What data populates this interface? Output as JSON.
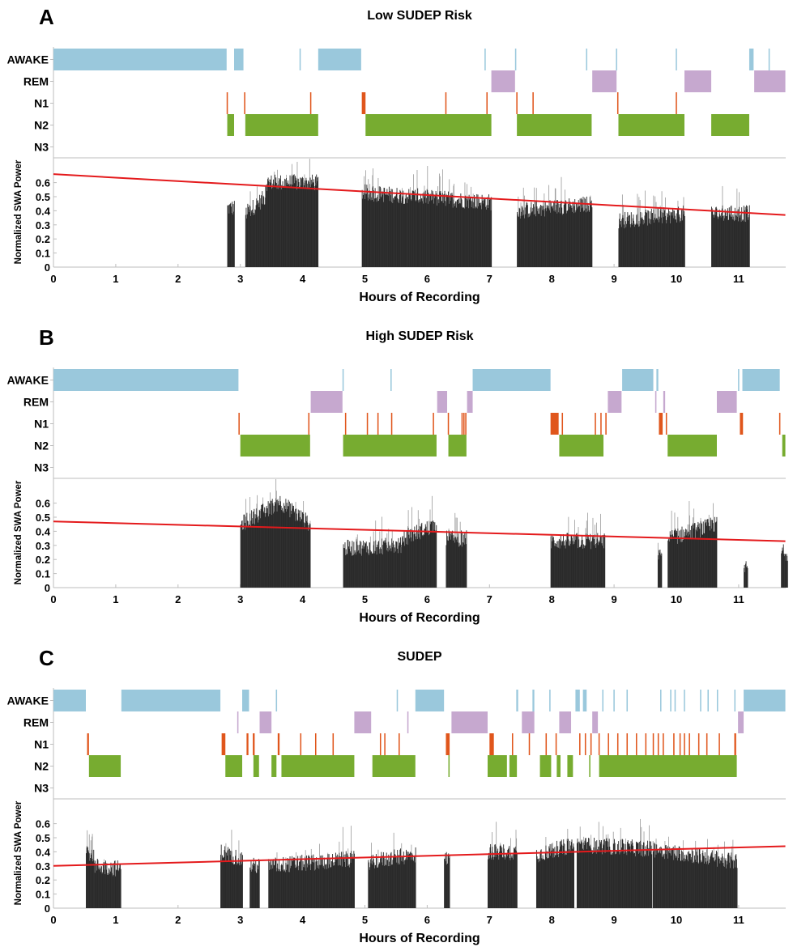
{
  "chart_data": {
    "type": "bar",
    "stage_labels": [
      "AWAKE",
      "REM",
      "N1",
      "N2",
      "N3"
    ],
    "colors": {
      "AWAKE": "#9ac8dc",
      "REM": "#c6a8cf",
      "N1": "#e0561c",
      "N2": "#77ac30",
      "bars": "#2a2a2a",
      "bar_peaks": "#9a9a9a",
      "trend": "#e41a1c",
      "axis": "#bdbdbd"
    },
    "xlabel": "Hours of Recording",
    "ylabel": "Normalized SWA Power",
    "xlim": [
      0,
      11.75
    ],
    "ylim": [
      0,
      0.776
    ],
    "xticks": [
      0,
      1,
      2,
      3,
      4,
      5,
      6,
      7,
      8,
      9,
      10,
      11
    ],
    "yticks": [
      0,
      0.1,
      0.2,
      0.3,
      0.4,
      0.5,
      0.6
    ],
    "panels": [
      {
        "label": "A",
        "title": "Low SUDEP Risk",
        "trend": [
          [
            0,
            0.66
          ],
          [
            11.75,
            0.37
          ]
        ],
        "hypnogram": {
          "AWAKE": [
            [
              0,
              2.78
            ],
            [
              2.9,
              3.05
            ],
            [
              3.95,
              3.97
            ],
            [
              4.25,
              4.94
            ],
            [
              6.92,
              6.94
            ],
            [
              7.41,
              7.43
            ],
            [
              8.55,
              8.57
            ],
            [
              9.03,
              9.05
            ],
            [
              9.99,
              10.01
            ],
            [
              11.17,
              11.24
            ],
            [
              11.48,
              11.5
            ]
          ],
          "REM": [
            [
              7.03,
              7.41
            ],
            [
              8.65,
              9.04
            ],
            [
              10.13,
              10.56
            ],
            [
              11.25,
              11.76
            ]
          ],
          "N1": [
            [
              2.78,
              2.8
            ],
            [
              3.06,
              3.08
            ],
            [
              4.12,
              4.14
            ],
            [
              4.95,
              5.01
            ],
            [
              6.29,
              6.31
            ],
            [
              6.95,
              6.97
            ],
            [
              7.43,
              7.45
            ],
            [
              7.69,
              7.71
            ],
            [
              9.05,
              9.07
            ],
            [
              9.99,
              10.01
            ]
          ],
          "N2": [
            [
              2.79,
              2.9
            ],
            [
              3.08,
              4.25
            ],
            [
              5.01,
              7.03
            ],
            [
              7.44,
              8.64
            ],
            [
              9.07,
              10.13
            ],
            [
              10.56,
              11.17
            ]
          ],
          "N3": []
        },
        "swa_segments": [
          {
            "start": 2.79,
            "end": 2.9,
            "level_start": 0.42,
            "level_end": 0.42
          },
          {
            "start": 3.08,
            "end": 3.4,
            "level_start": 0.38,
            "level_end": 0.5
          },
          {
            "start": 3.4,
            "end": 4.25,
            "level_start": 0.6,
            "level_end": 0.6
          },
          {
            "start": 4.95,
            "end": 7.03,
            "level_start": 0.53,
            "level_end": 0.46
          },
          {
            "start": 7.44,
            "end": 8.64,
            "level_start": 0.4,
            "level_end": 0.45
          },
          {
            "start": 9.07,
            "end": 10.13,
            "level_start": 0.33,
            "level_end": 0.38
          },
          {
            "start": 10.56,
            "end": 11.17,
            "level_start": 0.38,
            "level_end": 0.38
          }
        ]
      },
      {
        "label": "B",
        "title": "High SUDEP Risk",
        "trend": [
          [
            0,
            0.47
          ],
          [
            11.75,
            0.33
          ]
        ],
        "hypnogram": {
          "AWAKE": [
            [
              0,
              2.97
            ],
            [
              4.64,
              4.66
            ],
            [
              5.41,
              5.43
            ],
            [
              6.73,
              7.98
            ],
            [
              9.13,
              9.63
            ],
            [
              9.68,
              9.71
            ],
            [
              10.99,
              11.01
            ],
            [
              11.06,
              11.66
            ]
          ],
          "REM": [
            [
              4.13,
              4.64
            ],
            [
              6.16,
              6.32
            ],
            [
              6.64,
              6.73
            ],
            [
              8.9,
              9.12
            ],
            [
              9.66,
              9.68
            ],
            [
              9.79,
              9.82
            ],
            [
              10.65,
              10.97
            ]
          ],
          "N1": [
            [
              2.97,
              2.99
            ],
            [
              4.09,
              4.11
            ],
            [
              4.68,
              4.7
            ],
            [
              5.03,
              5.05
            ],
            [
              5.2,
              5.22
            ],
            [
              5.42,
              5.44
            ],
            [
              6.09,
              6.11
            ],
            [
              6.33,
              6.35
            ],
            [
              6.55,
              6.57
            ],
            [
              6.58,
              6.6
            ],
            [
              6.61,
              6.63
            ],
            [
              7.98,
              8.11
            ],
            [
              8.16,
              8.18
            ],
            [
              8.69,
              8.71
            ],
            [
              8.78,
              8.8
            ],
            [
              8.86,
              8.88
            ],
            [
              9.72,
              9.78
            ],
            [
              9.83,
              9.85
            ],
            [
              11.02,
              11.07
            ],
            [
              11.65,
              11.67
            ]
          ],
          "N2": [
            [
              3.0,
              4.12
            ],
            [
              4.65,
              6.15
            ],
            [
              6.34,
              6.63
            ],
            [
              8.12,
              8.83
            ],
            [
              9.86,
              10.65
            ],
            [
              11.7,
              11.78
            ]
          ],
          "N3": []
        },
        "swa_segments": [
          {
            "start": 3.0,
            "end": 3.6,
            "level_start": 0.45,
            "level_end": 0.6
          },
          {
            "start": 3.6,
            "end": 4.12,
            "level_start": 0.62,
            "level_end": 0.45
          },
          {
            "start": 4.65,
            "end": 5.6,
            "level_start": 0.28,
            "level_end": 0.3
          },
          {
            "start": 5.6,
            "end": 6.15,
            "level_start": 0.35,
            "level_end": 0.45
          },
          {
            "start": 6.3,
            "end": 6.63,
            "level_start": 0.35,
            "level_end": 0.35
          },
          {
            "start": 7.98,
            "end": 8.85,
            "level_start": 0.33,
            "level_end": 0.33
          },
          {
            "start": 9.7,
            "end": 9.76,
            "level_start": 0.22,
            "level_end": 0.22
          },
          {
            "start": 9.86,
            "end": 10.65,
            "level_start": 0.35,
            "level_end": 0.45
          },
          {
            "start": 11.08,
            "end": 11.14,
            "level_start": 0.14,
            "level_end": 0.14
          },
          {
            "start": 11.68,
            "end": 11.78,
            "level_start": 0.25,
            "level_end": 0.25
          }
        ]
      },
      {
        "label": "C",
        "title": "SUDEP",
        "trend": [
          [
            0,
            0.3
          ],
          [
            11.75,
            0.44
          ]
        ],
        "hypnogram": {
          "AWAKE": [
            [
              0,
              0.52
            ],
            [
              1.09,
              2.68
            ],
            [
              3.03,
              3.14
            ],
            [
              3.57,
              3.59
            ],
            [
              5.51,
              5.53
            ],
            [
              5.81,
              6.27
            ],
            [
              7.43,
              7.46
            ],
            [
              7.69,
              7.72
            ],
            [
              7.96,
              7.98
            ],
            [
              8.38,
              8.45
            ],
            [
              8.5,
              8.56
            ],
            [
              8.81,
              8.83
            ],
            [
              8.99,
              9.01
            ],
            [
              9.2,
              9.22
            ],
            [
              9.74,
              9.76
            ],
            [
              9.9,
              9.92
            ],
            [
              9.97,
              9.99
            ],
            [
              10.12,
              10.14
            ],
            [
              10.38,
              10.4
            ],
            [
              10.5,
              10.52
            ],
            [
              10.65,
              10.67
            ],
            [
              10.93,
              10.95
            ],
            [
              11.08,
              11.76
            ]
          ],
          "REM": [
            [
              2.95,
              2.97
            ],
            [
              3.31,
              3.5
            ],
            [
              4.83,
              5.1
            ],
            [
              5.68,
              5.7
            ],
            [
              6.39,
              6.97
            ],
            [
              7.52,
              7.72
            ],
            [
              8.12,
              8.31
            ],
            [
              8.65,
              8.74
            ],
            [
              10.99,
              11.08
            ]
          ],
          "N1": [
            [
              0.54,
              0.57
            ],
            [
              2.7,
              2.76
            ],
            [
              3.1,
              3.13
            ],
            [
              3.2,
              3.23
            ],
            [
              3.6,
              3.63
            ],
            [
              3.96,
              3.98
            ],
            [
              4.2,
              4.22
            ],
            [
              4.48,
              4.5
            ],
            [
              5.24,
              5.26
            ],
            [
              5.31,
              5.33
            ],
            [
              5.54,
              5.56
            ],
            [
              6.3,
              6.36
            ],
            [
              7.0,
              7.07
            ],
            [
              7.36,
              7.38
            ],
            [
              7.63,
              7.65
            ],
            [
              7.9,
              7.92
            ],
            [
              8.06,
              8.08
            ],
            [
              8.44,
              8.46
            ],
            [
              8.53,
              8.55
            ],
            [
              8.62,
              8.64
            ],
            [
              8.75,
              8.77
            ],
            [
              8.9,
              8.92
            ],
            [
              9.05,
              9.07
            ],
            [
              9.2,
              9.22
            ],
            [
              9.35,
              9.37
            ],
            [
              9.5,
              9.52
            ],
            [
              9.62,
              9.64
            ],
            [
              9.7,
              9.72
            ],
            [
              9.78,
              9.8
            ],
            [
              9.95,
              9.97
            ],
            [
              10.05,
              10.07
            ],
            [
              10.12,
              10.14
            ],
            [
              10.2,
              10.22
            ],
            [
              10.35,
              10.37
            ],
            [
              10.48,
              10.5
            ],
            [
              10.68,
              10.7
            ],
            [
              10.93,
              10.96
            ]
          ],
          "N2": [
            [
              0.57,
              1.08
            ],
            [
              2.76,
              3.03
            ],
            [
              3.21,
              3.3
            ],
            [
              3.5,
              3.58
            ],
            [
              3.66,
              4.83
            ],
            [
              5.12,
              5.81
            ],
            [
              6.34,
              6.36
            ],
            [
              6.97,
              7.28
            ],
            [
              7.32,
              7.44
            ],
            [
              7.81,
              7.99
            ],
            [
              8.08,
              8.14
            ],
            [
              8.25,
              8.34
            ],
            [
              8.6,
              8.62
            ],
            [
              8.76,
              10.97
            ]
          ],
          "N3": []
        },
        "swa_segments": [
          {
            "start": 0.52,
            "end": 0.65,
            "level_start": 0.42,
            "level_end": 0.35
          },
          {
            "start": 0.65,
            "end": 1.08,
            "level_start": 0.3,
            "level_end": 0.28
          },
          {
            "start": 2.68,
            "end": 3.03,
            "level_start": 0.4,
            "level_end": 0.35
          },
          {
            "start": 3.15,
            "end": 3.3,
            "level_start": 0.3,
            "level_end": 0.3
          },
          {
            "start": 3.45,
            "end": 4.83,
            "level_start": 0.3,
            "level_end": 0.35
          },
          {
            "start": 5.05,
            "end": 5.81,
            "level_start": 0.33,
            "level_end": 0.38
          },
          {
            "start": 6.27,
            "end": 6.36,
            "level_start": 0.35,
            "level_end": 0.35
          },
          {
            "start": 6.97,
            "end": 7.44,
            "level_start": 0.4,
            "level_end": 0.4
          },
          {
            "start": 7.75,
            "end": 8.35,
            "level_start": 0.38,
            "level_end": 0.45
          },
          {
            "start": 8.4,
            "end": 9.6,
            "level_start": 0.45,
            "level_end": 0.42
          },
          {
            "start": 9.62,
            "end": 10.97,
            "level_start": 0.42,
            "level_end": 0.33
          }
        ]
      }
    ]
  }
}
